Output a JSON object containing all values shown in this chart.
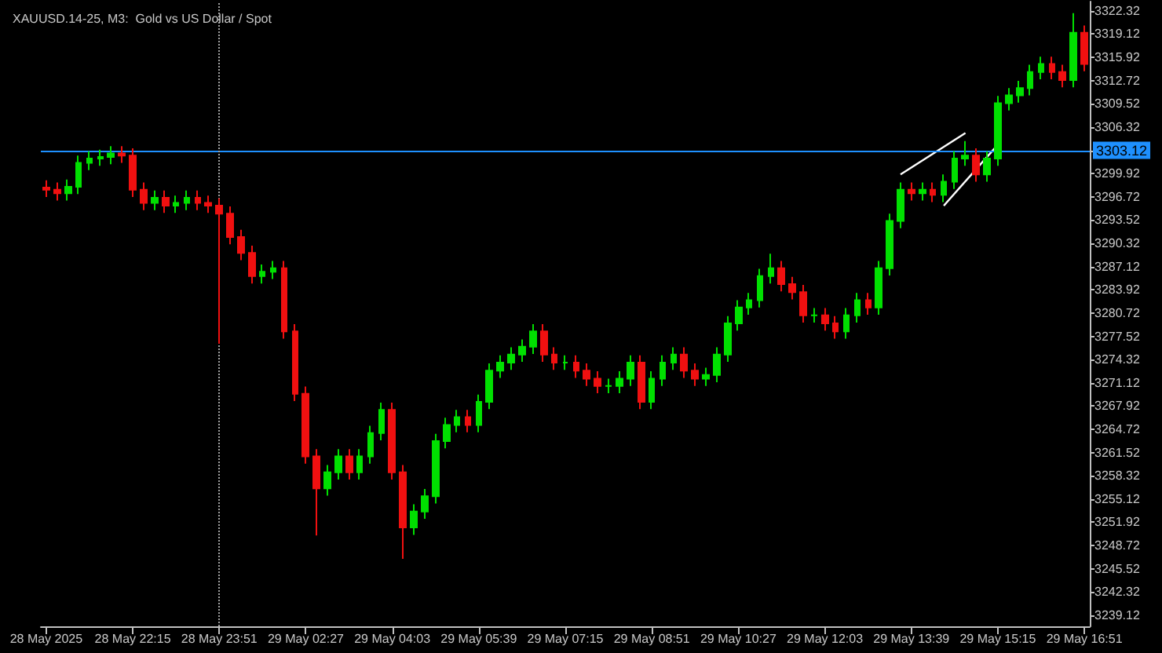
{
  "chart_data": {
    "type": "candlestick",
    "title": "XAUUSD.14-25, M3:  Gold vs US Dollar / Spot",
    "categories": [
      "28 May 2025",
      null,
      null,
      null,
      null,
      null,
      null,
      null,
      "28 May 22:15",
      null,
      null,
      null,
      null,
      null,
      null,
      null,
      "28 May 23:51",
      null,
      null,
      null,
      null,
      null,
      null,
      null,
      "29 May 02:27",
      null,
      null,
      null,
      null,
      null,
      null,
      null,
      "29 May 04:03",
      null,
      null,
      null,
      null,
      null,
      null,
      null,
      "29 May 05:39",
      null,
      null,
      null,
      null,
      null,
      null,
      null,
      "29 May 07:15",
      null,
      null,
      null,
      null,
      null,
      null,
      null,
      "29 May 08:51",
      null,
      null,
      null,
      null,
      null,
      null,
      null,
      "29 May 10:27",
      null,
      null,
      null,
      null,
      null,
      null,
      null,
      "29 May 12:03",
      null,
      null,
      null,
      null,
      null,
      null,
      null,
      "29 May 13:39",
      null,
      null,
      null,
      null,
      null,
      null,
      null,
      "29 May 15:15",
      null,
      null,
      null,
      null,
      null,
      null,
      null,
      "29 May 16:51"
    ],
    "ohlc": [
      [
        3298.0,
        3299.0,
        3296.7,
        3297.7
      ],
      [
        3297.7,
        3298.7,
        3296.2,
        3297.2
      ],
      [
        3297.2,
        3299.1,
        3296.2,
        3298.1
      ],
      [
        3298.1,
        3302.4,
        3297.1,
        3301.4
      ],
      [
        3301.4,
        3303.0,
        3300.4,
        3302.0
      ],
      [
        3302.0,
        3303.2,
        3301.0,
        3302.2
      ],
      [
        3302.2,
        3303.7,
        3301.2,
        3302.7
      ],
      [
        3302.7,
        3303.7,
        3301.4,
        3302.4
      ],
      [
        3302.4,
        3303.4,
        3296.7,
        3297.7
      ],
      [
        3297.7,
        3298.7,
        3294.9,
        3295.9
      ],
      [
        3295.9,
        3297.6,
        3294.9,
        3296.6
      ],
      [
        3296.6,
        3297.6,
        3294.5,
        3295.5
      ],
      [
        3295.5,
        3296.9,
        3294.5,
        3295.9
      ],
      [
        3295.9,
        3297.6,
        3294.9,
        3296.6
      ],
      [
        3296.6,
        3297.6,
        3294.9,
        3295.9
      ],
      [
        3295.9,
        3296.9,
        3294.5,
        3295.5
      ],
      [
        3295.5,
        3296.5,
        3276.5,
        3294.4
      ],
      [
        3294.4,
        3295.4,
        3290.2,
        3291.2
      ],
      [
        3291.2,
        3292.2,
        3288.0,
        3289.0
      ],
      [
        3289.0,
        3290.0,
        3284.8,
        3285.8
      ],
      [
        3285.8,
        3287.4,
        3284.8,
        3286.4
      ],
      [
        3286.4,
        3287.9,
        3285.4,
        3286.9
      ],
      [
        3286.9,
        3287.9,
        3277.2,
        3278.2
      ],
      [
        3278.2,
        3279.2,
        3268.6,
        3269.6
      ],
      [
        3269.6,
        3270.6,
        3260.0,
        3261.0
      ],
      [
        3261.0,
        3262.0,
        3250.1,
        3256.6
      ],
      [
        3256.6,
        3259.8,
        3255.6,
        3258.8
      ],
      [
        3258.8,
        3262.0,
        3257.8,
        3261.0
      ],
      [
        3261.0,
        3262.0,
        3257.8,
        3258.8
      ],
      [
        3258.8,
        3262.0,
        3257.8,
        3261.0
      ],
      [
        3261.0,
        3265.2,
        3260.0,
        3264.2
      ],
      [
        3264.2,
        3268.4,
        3263.2,
        3267.4
      ],
      [
        3267.4,
        3268.4,
        3257.8,
        3258.8
      ],
      [
        3258.8,
        3259.8,
        3246.9,
        3251.2
      ],
      [
        3251.2,
        3254.4,
        3250.2,
        3253.4
      ],
      [
        3253.4,
        3256.5,
        3252.4,
        3255.5
      ],
      [
        3255.5,
        3264.1,
        3254.5,
        3263.1
      ],
      [
        3263.1,
        3266.3,
        3262.1,
        3265.3
      ],
      [
        3265.3,
        3267.4,
        3264.3,
        3266.4
      ],
      [
        3266.4,
        3267.4,
        3264.3,
        3265.3
      ],
      [
        3265.3,
        3269.5,
        3264.3,
        3268.5
      ],
      [
        3268.5,
        3273.8,
        3267.5,
        3272.8
      ],
      [
        3272.8,
        3274.9,
        3271.8,
        3273.9
      ],
      [
        3273.9,
        3276.0,
        3272.9,
        3275.0
      ],
      [
        3275.0,
        3277.1,
        3274.0,
        3276.1
      ],
      [
        3276.1,
        3279.2,
        3275.1,
        3278.2
      ],
      [
        3278.2,
        3279.2,
        3274.0,
        3275.0
      ],
      [
        3275.0,
        3276.0,
        3272.9,
        3273.9
      ],
      [
        3273.9,
        3274.9,
        3272.9,
        3273.9
      ],
      [
        3273.9,
        3274.9,
        3271.8,
        3272.8
      ],
      [
        3272.8,
        3273.8,
        3270.7,
        3271.7
      ],
      [
        3271.7,
        3272.7,
        3269.7,
        3270.7
      ],
      [
        3270.7,
        3271.7,
        3269.7,
        3270.7
      ],
      [
        3270.7,
        3272.7,
        3269.7,
        3271.7
      ],
      [
        3271.7,
        3274.9,
        3270.7,
        3273.9
      ],
      [
        3273.9,
        3274.9,
        3267.5,
        3268.5
      ],
      [
        3268.5,
        3272.7,
        3267.5,
        3271.7
      ],
      [
        3271.7,
        3274.9,
        3270.7,
        3273.9
      ],
      [
        3273.9,
        3276.0,
        3272.9,
        3275.0
      ],
      [
        3275.0,
        3276.0,
        3271.8,
        3272.8
      ],
      [
        3272.8,
        3273.8,
        3270.7,
        3271.7
      ],
      [
        3271.7,
        3273.2,
        3270.7,
        3272.2
      ],
      [
        3272.2,
        3276.0,
        3271.2,
        3275.0
      ],
      [
        3275.0,
        3280.3,
        3274.0,
        3279.3
      ],
      [
        3279.3,
        3282.5,
        3278.3,
        3281.5
      ],
      [
        3281.5,
        3283.5,
        3280.5,
        3282.5
      ],
      [
        3282.5,
        3286.8,
        3281.5,
        3285.8
      ],
      [
        3285.8,
        3288.9,
        3284.8,
        3286.9
      ],
      [
        3286.9,
        3287.9,
        3283.7,
        3284.7
      ],
      [
        3284.7,
        3285.7,
        3282.6,
        3283.6
      ],
      [
        3283.6,
        3284.6,
        3279.4,
        3280.4
      ],
      [
        3280.4,
        3281.4,
        3279.4,
        3280.4
      ],
      [
        3280.4,
        3281.4,
        3278.3,
        3279.3
      ],
      [
        3279.3,
        3280.3,
        3277.2,
        3278.2
      ],
      [
        3278.2,
        3281.4,
        3277.2,
        3280.4
      ],
      [
        3280.4,
        3283.5,
        3279.4,
        3282.5
      ],
      [
        3282.5,
        3283.5,
        3280.5,
        3281.5
      ],
      [
        3281.5,
        3287.9,
        3280.5,
        3286.9
      ],
      [
        3286.9,
        3294.4,
        3285.9,
        3293.4
      ],
      [
        3293.4,
        3298.7,
        3292.4,
        3297.7
      ],
      [
        3297.7,
        3298.7,
        3296.2,
        3297.2
      ],
      [
        3297.2,
        3298.7,
        3296.2,
        3297.7
      ],
      [
        3297.7,
        3298.7,
        3296.0,
        3297.0
      ],
      [
        3297.0,
        3299.8,
        3296.0,
        3298.8
      ],
      [
        3298.8,
        3303.0,
        3297.8,
        3302.0
      ],
      [
        3302.0,
        3304.4,
        3301.0,
        3302.4
      ],
      [
        3302.4,
        3303.4,
        3298.8,
        3299.8
      ],
      [
        3299.8,
        3303.0,
        3298.8,
        3302.0
      ],
      [
        3302.0,
        3310.6,
        3301.0,
        3309.6
      ],
      [
        3309.6,
        3311.7,
        3308.6,
        3310.7
      ],
      [
        3310.7,
        3312.7,
        3309.7,
        3311.7
      ],
      [
        3311.7,
        3314.9,
        3310.7,
        3313.9
      ],
      [
        3313.9,
        3316.0,
        3312.9,
        3315.0
      ],
      [
        3315.0,
        3316.0,
        3312.9,
        3313.9
      ],
      [
        3313.9,
        3314.9,
        3311.8,
        3312.8
      ],
      [
        3312.8,
        3322.0,
        3311.8,
        3319.3
      ],
      [
        3319.3,
        3320.3,
        3314.0,
        3315.0
      ]
    ],
    "colors": [
      "#f01010",
      "#f01010",
      "#00e000",
      "#00e000",
      "#00e000",
      "#00e000",
      "#00e000",
      "#f01010",
      "#f01010",
      "#f01010",
      "#00e000",
      "#f01010",
      "#00e000",
      "#00e000",
      "#f01010",
      "#f01010",
      "#f01010",
      "#f01010",
      "#f01010",
      "#f01010",
      "#00e000",
      "#00e000",
      "#f01010",
      "#f01010",
      "#f01010",
      "#f01010",
      "#00e000",
      "#00e000",
      "#f01010",
      "#00e000",
      "#00e000",
      "#00e000",
      "#f01010",
      "#f01010",
      "#00e000",
      "#00e000",
      "#00e000",
      "#00e000",
      "#00e000",
      "#f01010",
      "#00e000",
      "#00e000",
      "#00e000",
      "#00e000",
      "#00e000",
      "#00e000",
      "#f01010",
      "#f01010",
      "#00e000",
      "#f01010",
      "#f01010",
      "#f01010",
      "#00e000",
      "#00e000",
      "#00e000",
      "#f01010",
      "#00e000",
      "#00e000",
      "#00e000",
      "#f01010",
      "#f01010",
      "#00e000",
      "#00e000",
      "#00e000",
      "#00e000",
      "#00e000",
      "#00e000",
      "#00e000",
      "#f01010",
      "#f01010",
      "#f01010",
      "#00e000",
      "#f01010",
      "#f01010",
      "#00e000",
      "#00e000",
      "#f01010",
      "#00e000",
      "#00e000",
      "#00e000",
      "#f01010",
      "#00e000",
      "#f01010",
      "#00e000",
      "#00e000",
      "#00e000",
      "#f01010",
      "#00e000",
      "#00e000",
      "#00e000",
      "#00e000",
      "#00e000",
      "#00e000",
      "#f01010",
      "#f01010",
      "#00e000",
      "#f01010"
    ],
    "series": [
      {
        "type": "line",
        "color": "#ffffff",
        "values": [
          null,
          null,
          null,
          null,
          null,
          null,
          null,
          null,
          null,
          null,
          null,
          null,
          null,
          null,
          null,
          null,
          null,
          null,
          null,
          null,
          null,
          null,
          null,
          null,
          null,
          null,
          null,
          null,
          null,
          null,
          null,
          null,
          null,
          null,
          null,
          null,
          null,
          null,
          null,
          null,
          null,
          null,
          null,
          null,
          null,
          null,
          null,
          null,
          null,
          null,
          null,
          null,
          null,
          null,
          null,
          null,
          null,
          null,
          null,
          null,
          null,
          null,
          null,
          null,
          null,
          null,
          null,
          null,
          null,
          null,
          null,
          null,
          null,
          null,
          null,
          null,
          null,
          null,
          null,
          3299.8,
          null,
          null,
          null,
          null,
          null,
          3305.5,
          null,
          null,
          null,
          null,
          null,
          null,
          null,
          null,
          null,
          null,
          null
        ]
      },
      {
        "type": "line",
        "color": "#ffffff",
        "values": [
          null,
          null,
          null,
          null,
          null,
          null,
          null,
          null,
          null,
          null,
          null,
          null,
          null,
          null,
          null,
          null,
          null,
          null,
          null,
          null,
          null,
          null,
          null,
          null,
          null,
          null,
          null,
          null,
          null,
          null,
          null,
          null,
          null,
          null,
          null,
          null,
          null,
          null,
          null,
          null,
          null,
          null,
          null,
          null,
          null,
          null,
          null,
          null,
          null,
          null,
          null,
          null,
          null,
          null,
          null,
          null,
          null,
          null,
          null,
          null,
          null,
          null,
          null,
          null,
          null,
          null,
          null,
          null,
          null,
          null,
          null,
          null,
          null,
          null,
          null,
          null,
          null,
          null,
          null,
          null,
          null,
          null,
          null,
          3295.5,
          null,
          null,
          null,
          null,
          3303.9,
          null,
          null,
          null,
          null,
          null,
          null,
          null,
          null
        ]
      }
    ],
    "ylim": [
      3237.6,
      3323.6
    ],
    "yticks": [
      3239.12,
      3242.32,
      3245.52,
      3248.72,
      3251.92,
      3255.12,
      3258.32,
      3261.52,
      3264.72,
      3267.92,
      3271.12,
      3274.32,
      3277.52,
      3280.72,
      3283.92,
      3287.12,
      3290.32,
      3293.52,
      3296.72,
      3299.92,
      {
        "value": 3303.12,
        "label": null
      },
      3306.32,
      3309.52,
      3312.72,
      3315.92,
      3319.12,
      3322.32
    ],
    "ref_lines": [
      {
        "axis": "y",
        "value": 3303.12,
        "label": "3303.12",
        "color": "#1e90ff",
        "line_style": "solid"
      },
      {
        "axis": "x",
        "value": "28 May 23:51",
        "color": "#a0a0a0",
        "line_style": "dotted"
      }
    ],
    "grid": false
  }
}
